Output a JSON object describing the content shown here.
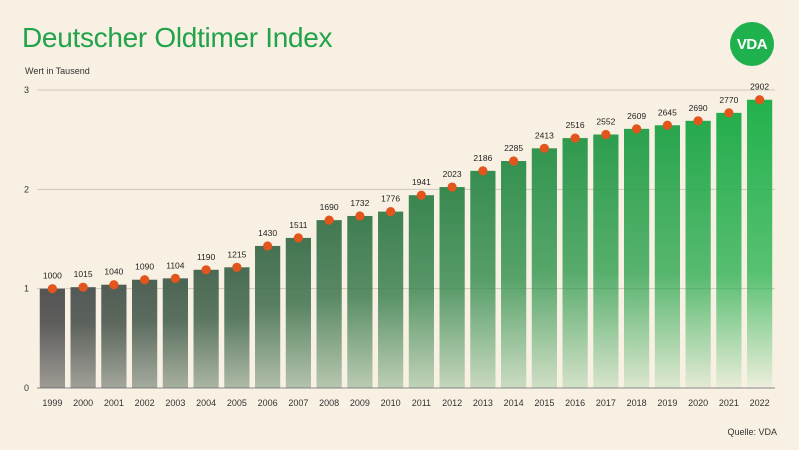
{
  "title": "Deutscher Oldtimer Index",
  "logo_text": "VDA",
  "source": "Quelle: VDA",
  "chart_data": {
    "type": "bar",
    "title": "Deutscher Oldtimer Index",
    "ylabel": "Wert in Tausend",
    "xlabel": "",
    "ylim": [
      0,
      3
    ],
    "yticks": [
      0,
      1,
      2,
      3
    ],
    "grid": true,
    "categories": [
      "1999",
      "2000",
      "2001",
      "2002",
      "2003",
      "2004",
      "2005",
      "2006",
      "2007",
      "2008",
      "2009",
      "2010",
      "2011",
      "2012",
      "2013",
      "2014",
      "2015",
      "2016",
      "2017",
      "2018",
      "2019",
      "2020",
      "2021",
      "2022"
    ],
    "values": [
      1000,
      1015,
      1040,
      1090,
      1104,
      1190,
      1215,
      1430,
      1511,
      1690,
      1732,
      1776,
      1941,
      2023,
      2186,
      2285,
      2413,
      2516,
      2552,
      2609,
      2645,
      2690,
      2770,
      2902
    ],
    "bar_gradient_start": "#555555",
    "bar_gradient_end": "#22b14c",
    "marker_color": "#e2561e"
  }
}
